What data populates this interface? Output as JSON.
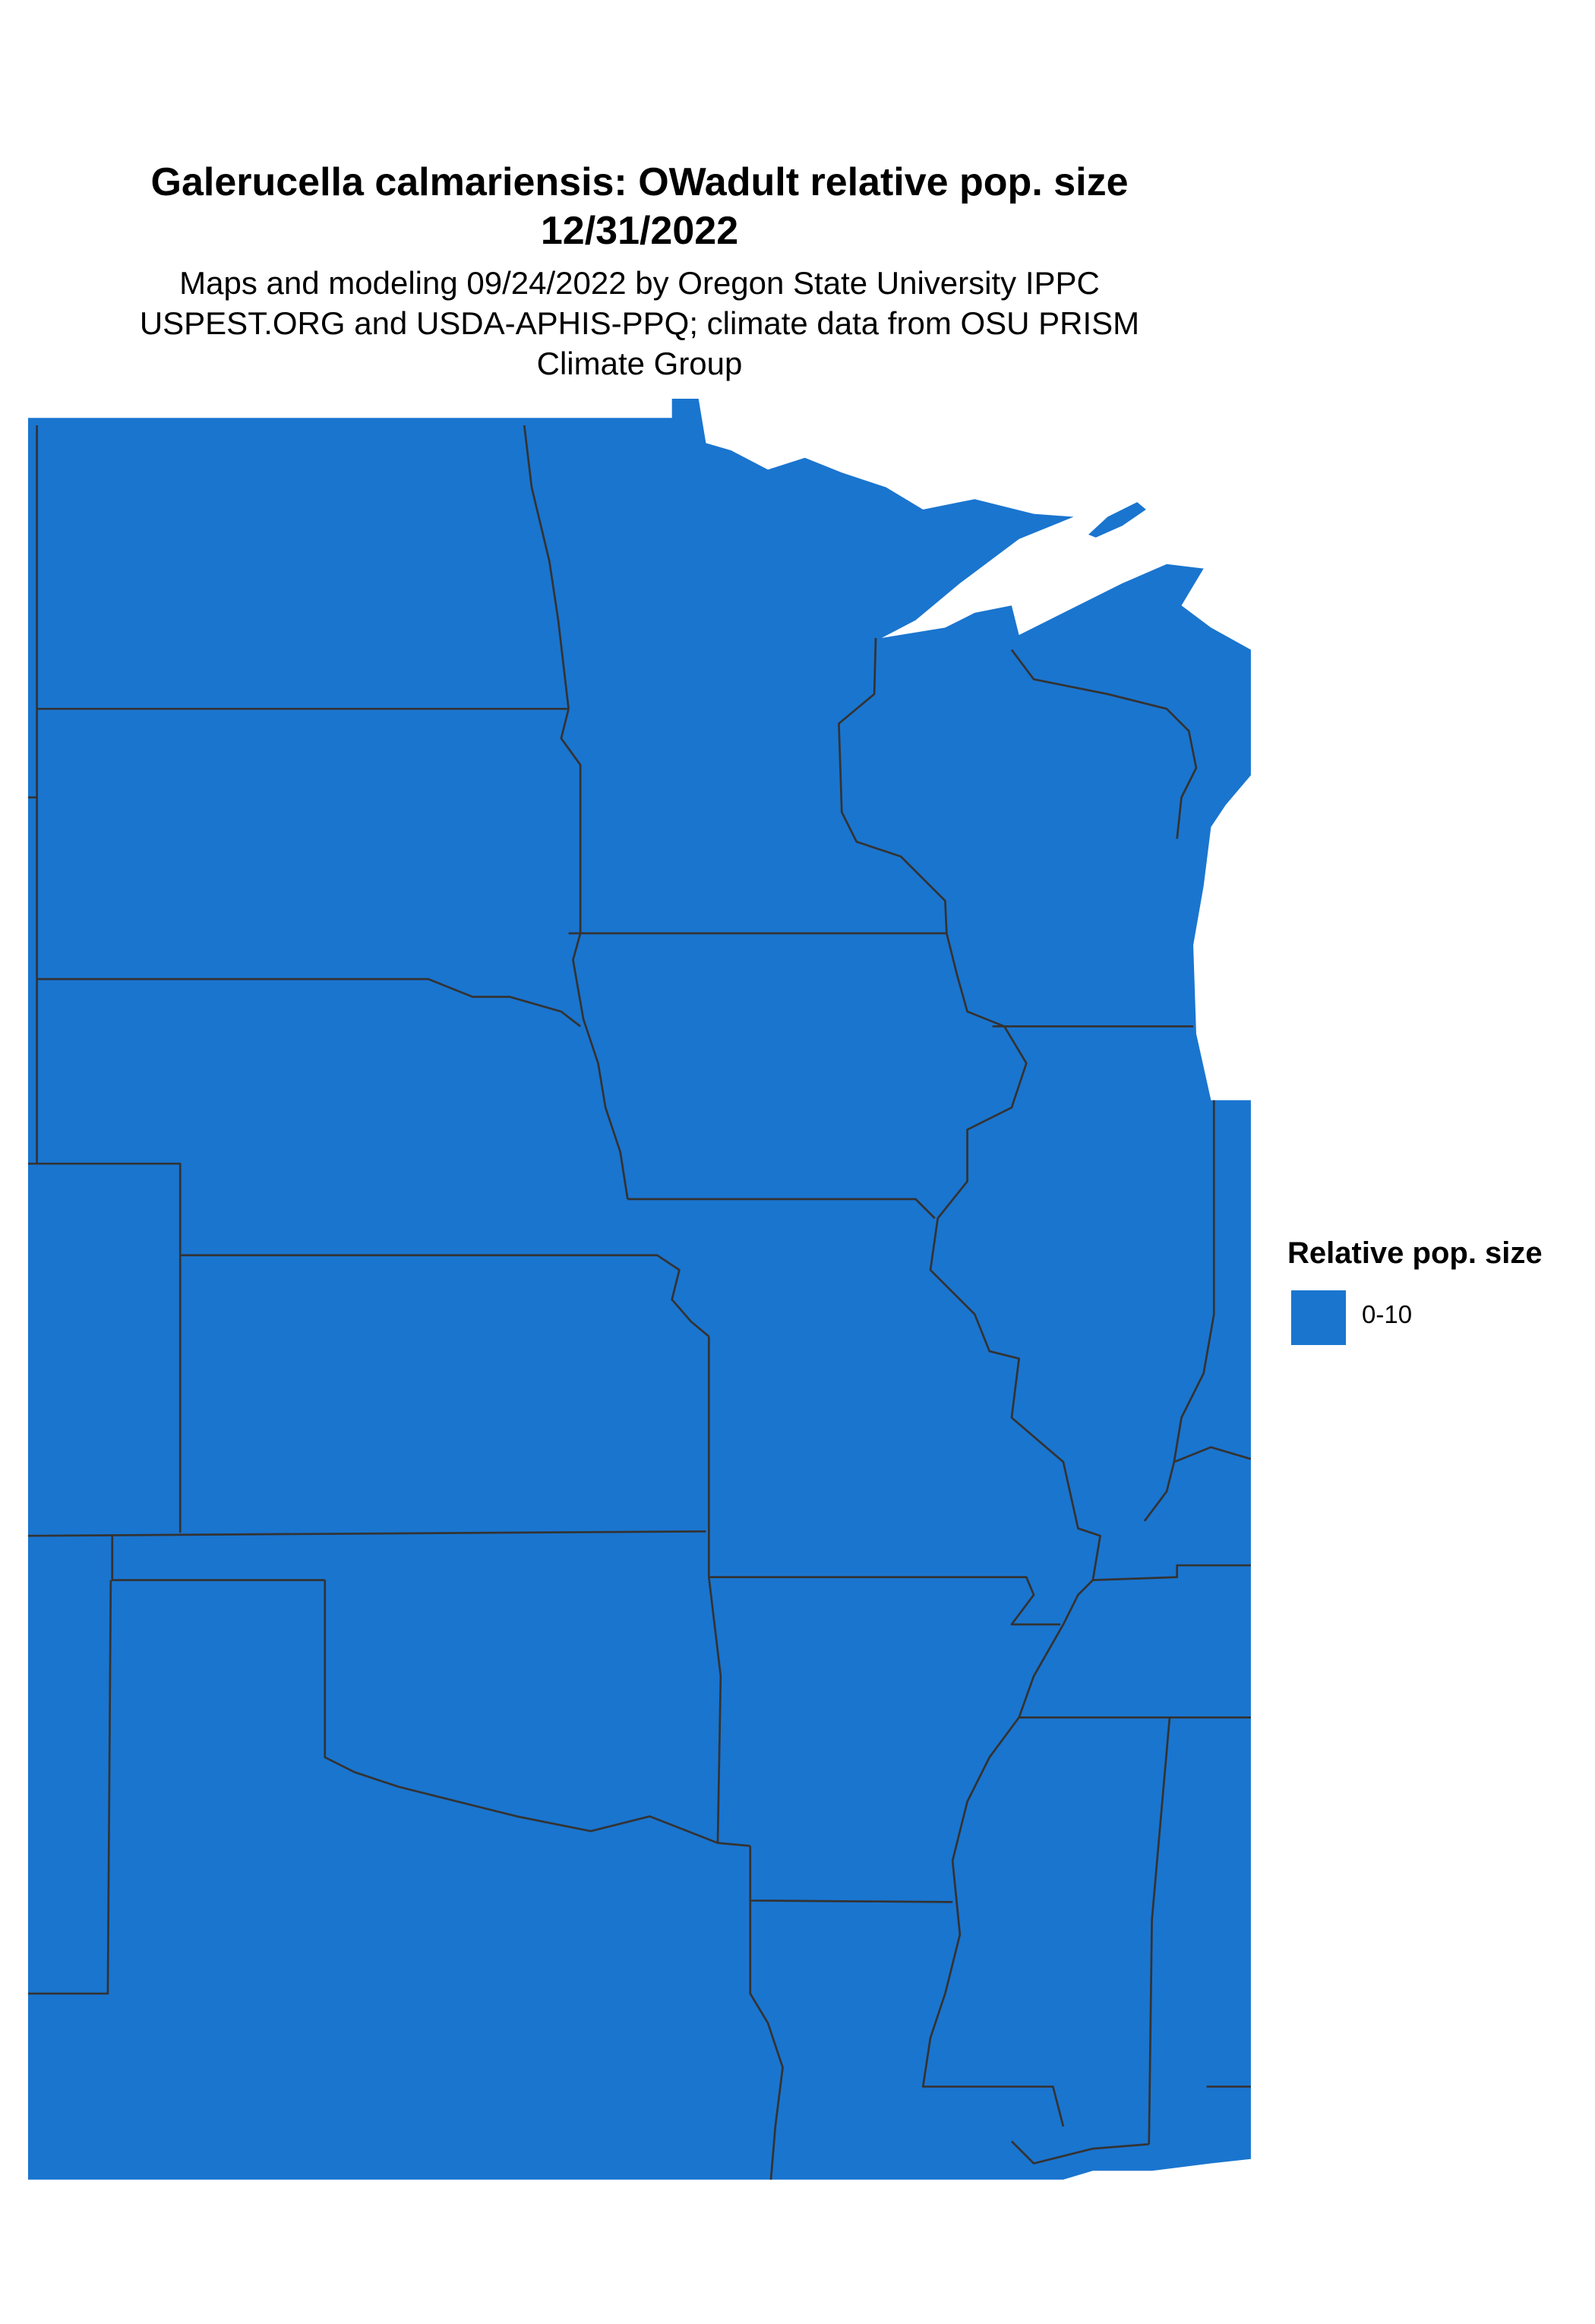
{
  "title": {
    "line1": "Galerucella calmariensis: OWadult relative pop. size",
    "line2": "12/31/2022"
  },
  "subtitle": {
    "line1": "Maps and modeling 09/24/2022 by Oregon State University IPPC",
    "line2": "USPEST.ORG and USDA-APHIS-PPQ; climate data from OSU PRISM",
    "line3": "Climate Group"
  },
  "legend": {
    "title": "Relative pop. size",
    "items": [
      {
        "label": "0-10",
        "color": "#1a75cf"
      }
    ]
  },
  "colors": {
    "fill": "#1a75cf",
    "border": "#333333",
    "background": "#ffffff"
  }
}
